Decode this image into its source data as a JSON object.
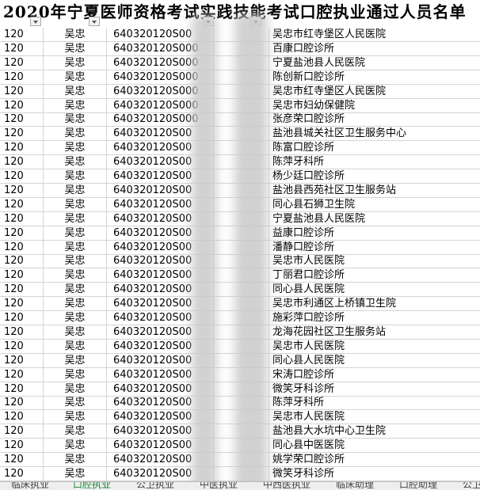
{
  "title": "2020年宁夏医师资格考试实践技能考试口腔执业通过人员名单",
  "rows": [
    [
      "120",
      "吴忠",
      "640320120S00",
      "吴忠市红寺堡区人民医院"
    ],
    [
      "120",
      "吴忠",
      "640320120S000",
      "百康口腔诊所"
    ],
    [
      "120",
      "吴忠",
      "640320120S000",
      "宁夏盐池县人民医院"
    ],
    [
      "120",
      "吴忠",
      "640320120S000",
      "陈创新口腔诊所"
    ],
    [
      "120",
      "吴忠",
      "640320120S000",
      "吴忠市红寺堡区人民医院"
    ],
    [
      "120",
      "吴忠",
      "640320120S000",
      "吴忠市妇幼保健院"
    ],
    [
      "120",
      "吴忠",
      "640320120S000",
      "张彦荣口腔诊所"
    ],
    [
      "120",
      "吴忠",
      "640320120S00",
      "盐池县城关社区卫生服务中心"
    ],
    [
      "120",
      "吴忠",
      "640320120S00",
      "陈富口腔诊所"
    ],
    [
      "120",
      "吴忠",
      "640320120S00",
      "陈萍牙科所"
    ],
    [
      "120",
      "吴忠",
      "640320120S00",
      "杨少廷口腔诊所"
    ],
    [
      "120",
      "吴忠",
      "640320120S00",
      "盐池县西苑社区卫生服务站"
    ],
    [
      "120",
      "吴忠",
      "640320120S00",
      "同心县石狮卫生院"
    ],
    [
      "120",
      "吴忠",
      "640320120S00",
      "宁夏盐池县人民医院"
    ],
    [
      "120",
      "吴忠",
      "640320120S00",
      "益康口腔诊所"
    ],
    [
      "120",
      "吴忠",
      "640320120S00",
      "潘静口腔诊所"
    ],
    [
      "120",
      "吴忠",
      "640320120S00",
      "吴忠市人民医院"
    ],
    [
      "120",
      "吴忠",
      "640320120S00",
      "丁丽君口腔诊所"
    ],
    [
      "120",
      "吴忠",
      "640320120S00",
      "同心县人民医院"
    ],
    [
      "120",
      "吴忠",
      "640320120S00",
      "吴忠市利通区上桥镇卫生院"
    ],
    [
      "120",
      "吴忠",
      "640320120S00",
      "施彩萍口腔诊所"
    ],
    [
      "120",
      "吴忠",
      "640320120S00",
      "龙海花园社区卫生服务站"
    ],
    [
      "120",
      "吴忠",
      "640320120S00",
      "吴忠市人民医院"
    ],
    [
      "120",
      "吴忠",
      "640320120S00",
      "同心县人民医院"
    ],
    [
      "120",
      "吴忠",
      "640320120S00",
      "宋涛口腔诊所"
    ],
    [
      "120",
      "吴忠",
      "640320120S00",
      "微笑牙科诊所"
    ],
    [
      "120",
      "吴忠",
      "640320120S00",
      "陈萍牙科所"
    ],
    [
      "120",
      "吴忠",
      "640320120S00",
      "吴忠市人民医院"
    ],
    [
      "120",
      "吴忠",
      "640320120S00",
      "盐池县大水坑中心卫生院"
    ],
    [
      "120",
      "吴忠",
      "640320120S00",
      "同心县中医医院"
    ],
    [
      "120",
      "吴忠",
      "640320120S00",
      "姚学荣口腔诊所"
    ],
    [
      "120",
      "吴忠",
      "640320120S00",
      "微笑牙科诊所"
    ]
  ],
  "tabs": [
    "临床执业",
    "口腔执业",
    "公卫执业",
    "中医执业",
    "中西医执业",
    "临床助理",
    "口腔助理",
    "公卫助理"
  ],
  "active_tab": 1
}
